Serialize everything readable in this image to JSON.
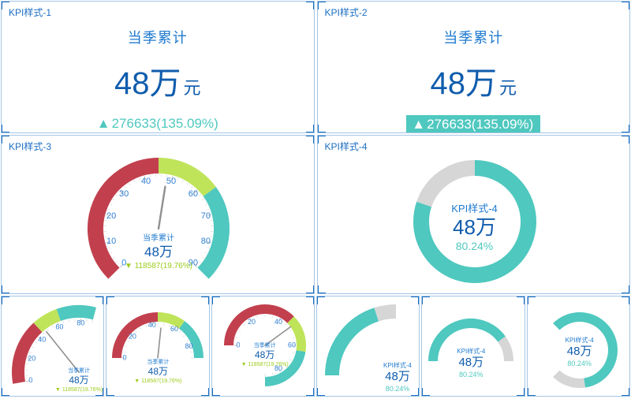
{
  "colors": {
    "border": "#a3c6e6",
    "corner": "#176bbd",
    "title_blue": "#1b6ec2",
    "label_blue": "#1f7ad0",
    "value_blue": "#0f5cad",
    "tick_blue": "#2f7fd2",
    "teal": "#4fc8bf",
    "gray": "#d6d6d6",
    "red": "#c2404e",
    "green": "#bfe45a",
    "delta_green": "#9ccc1c",
    "needle": "#909090",
    "tick_mark": "#c9c9c9",
    "tick_mark_minor": "#e2e2e2"
  },
  "icons": {
    "up_triangle": "▲",
    "down_triangle": "▼"
  },
  "panels": {
    "kpi1": {
      "title": "KPI样式-1",
      "label": "当季累计",
      "value": "48万",
      "unit": "元",
      "delta": "276633(135.09%)"
    },
    "kpi2": {
      "title": "KPI样式-2",
      "label": "当季累计",
      "value": "48万",
      "unit": "元",
      "delta": "276633(135.09%)"
    },
    "gauge_main": {
      "title": "KPI样式-3"
    },
    "ring_main": {
      "title": "KPI样式-4"
    }
  },
  "chart_data": [
    {
      "id": "gauge-main",
      "type": "gauge",
      "min": 0,
      "max": 90,
      "value": 48,
      "start_angle": 225,
      "end_angle": -45,
      "label_step": 10,
      "minor_step": 2,
      "tick_labels": [
        0,
        10,
        20,
        30,
        40,
        50,
        60,
        70,
        80,
        90
      ],
      "bands": [
        {
          "from": 0,
          "to": 45,
          "color": "#c2404e"
        },
        {
          "from": 45,
          "to": 63,
          "color": "#bfe45a"
        },
        {
          "from": 63,
          "to": 90,
          "color": "#4fc8bf"
        }
      ],
      "center": {
        "label": "当季累计",
        "value": "48万",
        "delta": "118587(19.76%)",
        "delta_dir": "down"
      }
    },
    {
      "id": "gauge-small-1",
      "type": "gauge",
      "min": 0,
      "max": 90,
      "value": 48,
      "start_angle": 190,
      "end_angle": 75,
      "label_step": 20,
      "minor_step": 5,
      "tick_labels": [
        0,
        20,
        40,
        60,
        80
      ],
      "bands": [
        {
          "from": 0,
          "to": 45,
          "color": "#c2404e"
        },
        {
          "from": 45,
          "to": 63,
          "color": "#bfe45a"
        },
        {
          "from": 63,
          "to": 90,
          "color": "#4fc8bf"
        }
      ],
      "center": {
        "label": "当季累计",
        "value": "48万",
        "delta": "118587(19.76%)",
        "delta_dir": "down"
      }
    },
    {
      "id": "gauge-small-2",
      "type": "gauge",
      "min": 0,
      "max": 90,
      "value": 48,
      "start_angle": 180,
      "end_angle": 0,
      "label_step": 20,
      "minor_step": 5,
      "tick_labels": [
        0,
        20,
        40,
        60,
        80
      ],
      "bands": [
        {
          "from": 0,
          "to": 45,
          "color": "#c2404e"
        },
        {
          "from": 45,
          "to": 63,
          "color": "#bfe45a"
        },
        {
          "from": 63,
          "to": 90,
          "color": "#4fc8bf"
        }
      ],
      "center": {
        "label": "当季累计",
        "value": "48万",
        "delta": "118587(19.76%)",
        "delta_dir": "down"
      }
    },
    {
      "id": "gauge-small-3",
      "type": "gauge",
      "min": 0,
      "max": 90,
      "value": 48,
      "start_angle": 180,
      "end_angle": -90,
      "label_step": 20,
      "minor_step": 5,
      "tick_labels": [
        0,
        20,
        40,
        60,
        80
      ],
      "bands": [
        {
          "from": 0,
          "to": 45,
          "color": "#c2404e"
        },
        {
          "from": 45,
          "to": 63,
          "color": "#bfe45a"
        },
        {
          "from": 63,
          "to": 90,
          "color": "#4fc8bf"
        }
      ],
      "center": {
        "label": "当季累计",
        "value": "48万",
        "delta": "118587(19.76%)",
        "delta_dir": "down"
      }
    },
    {
      "id": "ring-main",
      "type": "ring",
      "percent": 80.24,
      "start_angle": 90,
      "span": 360,
      "color": "#4fc8bf",
      "track_color": "#d6d6d6",
      "center": {
        "label": "KPI样式-4",
        "value": "48万",
        "pct": "80.24%"
      }
    },
    {
      "id": "ring-small-1",
      "type": "ring",
      "percent": 80.24,
      "start_angle": 180,
      "span": 90,
      "color": "#4fc8bf",
      "track_color": "#d6d6d6",
      "center": {
        "label": "KPI样式-4",
        "value": "48万",
        "pct": "80.24%"
      }
    },
    {
      "id": "ring-small-2",
      "type": "ring",
      "percent": 80.24,
      "start_angle": 180,
      "span": 180,
      "color": "#4fc8bf",
      "track_color": "#d6d6d6",
      "center": {
        "label": "KPI样式-4",
        "value": "48万",
        "pct": "80.24%"
      }
    },
    {
      "id": "ring-small-3",
      "type": "ring",
      "percent": 80.24,
      "start_angle": 135,
      "span": 270,
      "color": "#4fc8bf",
      "track_color": "#d6d6d6",
      "center": {
        "label": "KPI样式-4",
        "value": "48万",
        "pct": "80.24%"
      }
    }
  ]
}
